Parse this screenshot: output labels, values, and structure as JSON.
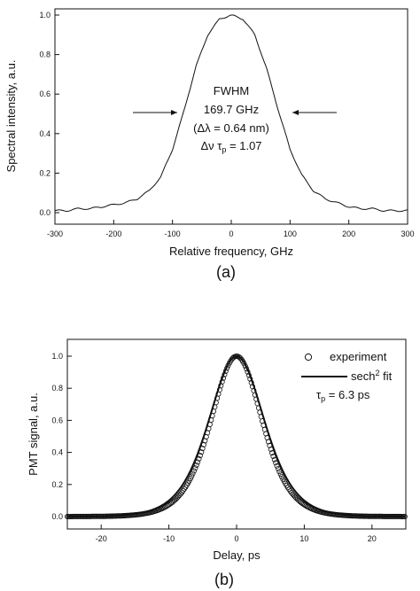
{
  "chart_data": [
    {
      "panel_label": "(a)",
      "type": "line",
      "xlabel": "Relative frequency, GHz",
      "ylabel": "Spectral intensity, a.u.",
      "xlim": [
        -300,
        300
      ],
      "ylim": [
        0.0,
        1.0
      ],
      "xticks": [
        -300,
        -200,
        -100,
        0,
        100,
        200,
        300
      ],
      "yticks": [
        "0.0",
        "0.2",
        "0.4",
        "0.6",
        "0.8",
        "1.0"
      ],
      "grid": false,
      "annotation": [
        "FWHM",
        "169.7 GHz",
        "(Δλ = 0.64 nm)",
        "Δν τ",
        "p",
        " = 1.07"
      ],
      "series": [
        {
          "x": [
            -300,
            -280,
            -260,
            -240,
            -220,
            -200,
            -180,
            -160,
            -140,
            -120,
            -100,
            -80,
            -60,
            -40,
            -20,
            0,
            20,
            40,
            60,
            80,
            100,
            120,
            140,
            160,
            180,
            200,
            220,
            240,
            260,
            280,
            300
          ],
          "y": [
            0.01,
            0.01,
            0.02,
            0.02,
            0.03,
            0.04,
            0.05,
            0.07,
            0.11,
            0.18,
            0.32,
            0.52,
            0.74,
            0.9,
            0.98,
            1.0,
            0.98,
            0.9,
            0.73,
            0.52,
            0.32,
            0.19,
            0.11,
            0.07,
            0.05,
            0.03,
            0.02,
            0.02,
            0.01,
            0.01,
            0.01
          ]
        }
      ]
    },
    {
      "panel_label": "(b)",
      "type": "scatter",
      "xlabel": "Delay, ps",
      "ylabel": "PMT signal, a.u.",
      "xlim": [
        -25,
        25
      ],
      "ylim": [
        0.0,
        1.0
      ],
      "xticks": [
        -20,
        -10,
        0,
        10,
        20
      ],
      "yticks": [
        "0.0",
        "0.2",
        "0.4",
        "0.6",
        "0.8",
        "1.0"
      ],
      "grid": false,
      "legend": {
        "placement": "top-right",
        "experiment": "experiment",
        "fit_prefix": "sech",
        "fit_sup": "2",
        "fit_suffix": " fit",
        "tau_sym": "τ",
        "tau_sub": "p",
        "tau_val": " = 6.3 ps"
      },
      "series": [
        {
          "name": "experiment",
          "marker": "open-circle",
          "pulse_fwhm_ps": 9.7,
          "x_range": [
            -25,
            25
          ],
          "peak": 1.0,
          "baseline": 0.0
        },
        {
          "name": "sech2 fit",
          "marker": "line",
          "pulse_fwhm_ps": 9.7,
          "x_range": [
            -25,
            25
          ],
          "peak": 1.0
        }
      ]
    }
  ]
}
